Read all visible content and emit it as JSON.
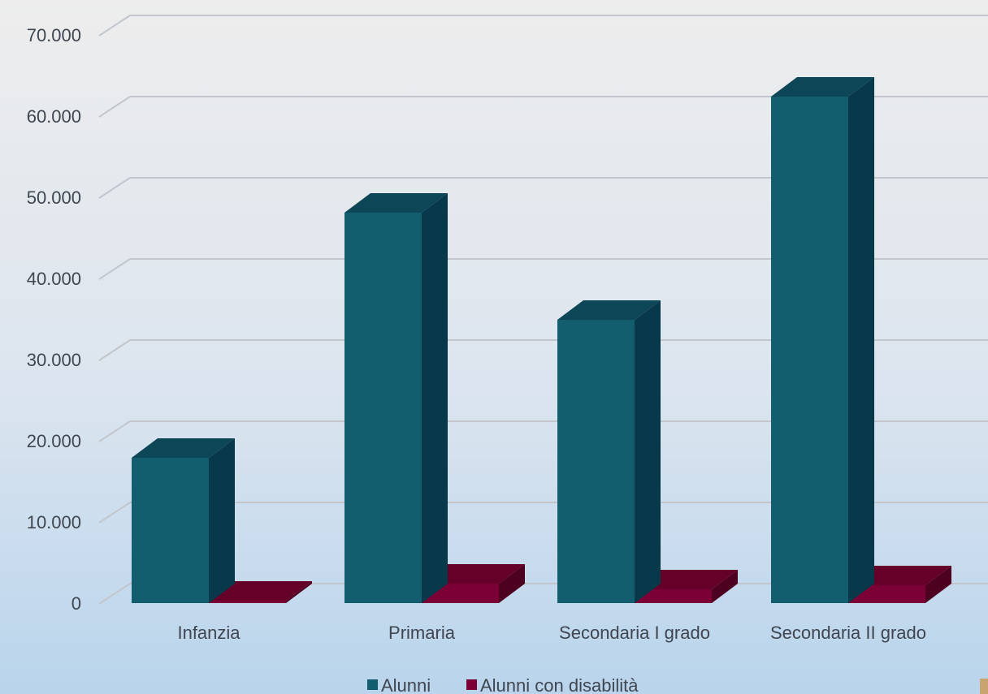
{
  "chart_data": {
    "type": "bar",
    "three_d": true,
    "categories": [
      "Infanzia",
      "Primaria",
      "Secondaria I grado",
      "Secondaria II grado"
    ],
    "series": [
      {
        "name": "Alunni",
        "values": [
          17900,
          48100,
          34900,
          62400
        ],
        "color": "#125D6E",
        "side_color": "#08394A",
        "top_color": "#0D4656"
      },
      {
        "name": "Alunni con disabilità",
        "values": [
          300,
          2400,
          1700,
          2200
        ],
        "color": "#7B0036",
        "side_color": "#4E0020",
        "top_color": "#650028"
      }
    ],
    "y_ticks": [
      "0",
      "10.000",
      "20.000",
      "30.000",
      "40.000",
      "50.000",
      "60.000",
      "70.000"
    ],
    "ylim": [
      0,
      70000
    ],
    "grid": true,
    "legend_position": "bottom",
    "background_top": "#EDEDED",
    "background_bottom": "#B9D4EC",
    "corner_marker_color": "#C8A46E"
  }
}
